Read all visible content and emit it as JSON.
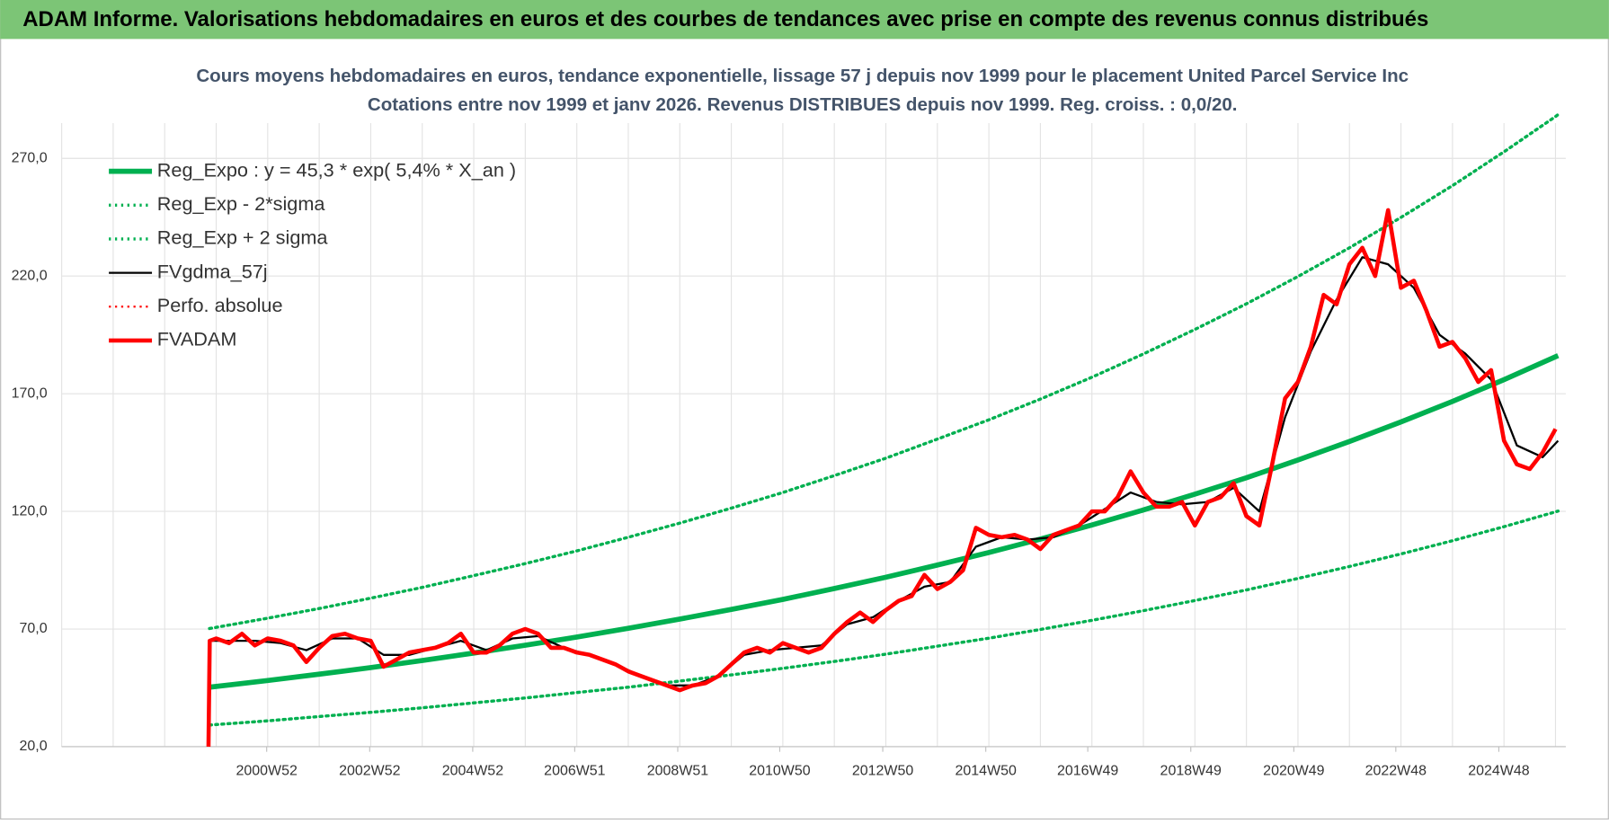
{
  "header": {
    "title": "ADAM Informe. Valorisations hebdomadaires en euros et des courbes de tendances avec prise en compte des revenus connus distribués"
  },
  "chart_data": {
    "type": "line",
    "title": "Cours moyens hebdomadaires en euros, tendance exponentielle, lissage 57 j depuis nov 1999  pour le placement United Parcel Service Inc",
    "subtitle": "Cotations entre nov 1999 et janv 2026. Revenus DISTRIBUES depuis nov 1999. Reg. croiss. : 0,0/20.",
    "xlim": [
      1997,
      2026.2
    ],
    "xticks": [
      {
        "value": 2000.98,
        "label": "2000W52"
      },
      {
        "value": 2002.98,
        "label": "2002W52"
      },
      {
        "value": 2004.98,
        "label": "2004W52"
      },
      {
        "value": 2006.96,
        "label": "2006W51"
      },
      {
        "value": 2008.96,
        "label": "2008W51"
      },
      {
        "value": 2010.94,
        "label": "2010W50"
      },
      {
        "value": 2012.94,
        "label": "2012W50"
      },
      {
        "value": 2014.94,
        "label": "2014W50"
      },
      {
        "value": 2016.92,
        "label": "2016W49"
      },
      {
        "value": 2018.92,
        "label": "2018W49"
      },
      {
        "value": 2020.92,
        "label": "2020W49"
      },
      {
        "value": 2022.9,
        "label": "2022W48"
      },
      {
        "value": 2024.9,
        "label": "2024W48"
      }
    ],
    "xgrid": [
      1997,
      1998,
      1999,
      2000,
      2001,
      2002,
      2003,
      2004,
      2005,
      2006,
      2007,
      2008,
      2009,
      2010,
      2011,
      2012,
      2013,
      2014,
      2015,
      2016,
      2017,
      2018,
      2019,
      2020,
      2021,
      2022,
      2023,
      2024,
      2025,
      2026
    ],
    "ylim": [
      20,
      285
    ],
    "yticks": [
      {
        "value": 20,
        "label": "20,0"
      },
      {
        "value": 70,
        "label": "70,0"
      },
      {
        "value": 120,
        "label": "120,0"
      },
      {
        "value": 170,
        "label": "170,0"
      },
      {
        "value": 220,
        "label": "220,0"
      },
      {
        "value": 270,
        "label": "270,0"
      }
    ],
    "grid": true,
    "legend": "upper-left",
    "series": [
      {
        "name": "Reg_Expo : y = 45,3 * exp( 5,4% *  X_an )",
        "color": "#00b050",
        "style": "solid",
        "width": 5,
        "x": [
          1999.87,
          2001,
          2002,
          2003,
          2004,
          2005,
          2006,
          2007,
          2008,
          2009,
          2010,
          2011,
          2012,
          2013,
          2014,
          2015,
          2016,
          2017,
          2018,
          2019,
          2020,
          2021,
          2022,
          2023,
          2024,
          2025,
          2026,
          2026.05
        ],
        "values": [
          45.3,
          48.1,
          50.8,
          53.6,
          56.6,
          59.8,
          63.1,
          66.6,
          70.3,
          74.2,
          78.3,
          82.6,
          87.2,
          92.0,
          97.2,
          102.5,
          108.2,
          114.2,
          120.6,
          127.3,
          134.3,
          141.8,
          149.7,
          158.0,
          166.7,
          176.0,
          185.7,
          186.2
        ]
      },
      {
        "name": "Reg_Exp - 2*sigma",
        "color": "#00b050",
        "style": "dotted",
        "width": 3,
        "x": [
          1999.87,
          2001,
          2002,
          2003,
          2004,
          2005,
          2006,
          2007,
          2008,
          2009,
          2010,
          2011,
          2012,
          2013,
          2014,
          2015,
          2016,
          2017,
          2018,
          2019,
          2020,
          2021,
          2022,
          2023,
          2024,
          2025,
          2026,
          2026.05
        ],
        "values": [
          29.2,
          31.0,
          32.8,
          34.6,
          36.5,
          38.6,
          40.7,
          43.0,
          45.3,
          47.9,
          50.5,
          53.3,
          56.2,
          59.3,
          62.7,
          66.1,
          69.8,
          73.7,
          77.8,
          82.1,
          86.6,
          91.5,
          96.6,
          101.9,
          107.5,
          113.5,
          119.8,
          120.1
        ]
      },
      {
        "name": "Reg_Exp + 2 sigma",
        "color": "#00b050",
        "style": "dotted",
        "width": 3,
        "x": [
          1999.87,
          2001,
          2002,
          2003,
          2004,
          2005,
          2006,
          2007,
          2008,
          2009,
          2010,
          2011,
          2012,
          2013,
          2014,
          2015,
          2016,
          2017,
          2018,
          2019,
          2020,
          2021,
          2022,
          2023,
          2024,
          2025,
          2026,
          2026.05
        ],
        "values": [
          70.2,
          74.6,
          78.7,
          83.1,
          87.7,
          92.7,
          97.8,
          103.2,
          109.0,
          115.0,
          121.4,
          128.0,
          135.2,
          142.6,
          150.7,
          158.9,
          167.7,
          177.0,
          186.9,
          197.3,
          208.2,
          219.8,
          232.0,
          244.9,
          258.4,
          272.8,
          287.8,
          288.6
        ]
      },
      {
        "name": "FVgdma_57j",
        "color": "#000000",
        "style": "solid",
        "width": 2,
        "x": [
          1999.875,
          2000.25,
          2000.75,
          2001.25,
          2001.75,
          2002.25,
          2002.75,
          2003.25,
          2003.75,
          2004.25,
          2004.75,
          2005.25,
          2005.75,
          2006.25,
          2006.75,
          2007.25,
          2007.75,
          2008.25,
          2008.75,
          2009.25,
          2009.75,
          2010.25,
          2010.75,
          2011.25,
          2011.75,
          2012.25,
          2012.75,
          2013.25,
          2013.75,
          2014.25,
          2014.75,
          2015.25,
          2015.75,
          2016.25,
          2016.75,
          2017.25,
          2017.75,
          2018.25,
          2018.75,
          2019.25,
          2019.75,
          2020.25,
          2020.75,
          2021.25,
          2021.75,
          2022.25,
          2022.75,
          2023.25,
          2023.75,
          2024.25,
          2024.75,
          2025.25,
          2025.75,
          2026.05
        ],
        "values": [
          65,
          65,
          65,
          64,
          61,
          66,
          66,
          59,
          59,
          62,
          65,
          61,
          66,
          67,
          62,
          59,
          55,
          50,
          46,
          46,
          50,
          59,
          61,
          62,
          63,
          72,
          75,
          82,
          88,
          90,
          105,
          109,
          108,
          109,
          114,
          121,
          128,
          124,
          123,
          124,
          130,
          120,
          160,
          188,
          210,
          228,
          225,
          215,
          195,
          187,
          176,
          148,
          143,
          150
        ]
      },
      {
        "name": "Perfo. absolue",
        "color": "#ff0000",
        "style": "dotted",
        "width": 2,
        "x": [],
        "values": []
      },
      {
        "name": "FVADAM",
        "color": "#ff0000",
        "style": "solid",
        "width": 4,
        "x": [
          1999.85,
          1999.875,
          2000.0,
          2000.25,
          2000.5,
          2000.75,
          2001.0,
          2001.25,
          2001.5,
          2001.75,
          2002.0,
          2002.25,
          2002.5,
          2002.75,
          2003.0,
          2003.25,
          2003.5,
          2003.75,
          2004.0,
          2004.25,
          2004.5,
          2004.75,
          2005.0,
          2005.25,
          2005.5,
          2005.75,
          2006.0,
          2006.25,
          2006.5,
          2006.75,
          2007.0,
          2007.25,
          2007.5,
          2007.75,
          2008.0,
          2008.25,
          2008.5,
          2008.75,
          2009.0,
          2009.25,
          2009.5,
          2009.75,
          2010.0,
          2010.25,
          2010.5,
          2010.75,
          2011.0,
          2011.25,
          2011.5,
          2011.75,
          2012.0,
          2012.25,
          2012.5,
          2012.75,
          2013.0,
          2013.25,
          2013.5,
          2013.75,
          2014.0,
          2014.25,
          2014.5,
          2014.75,
          2015.0,
          2015.25,
          2015.5,
          2015.75,
          2016.0,
          2016.25,
          2016.5,
          2016.75,
          2017.0,
          2017.25,
          2017.5,
          2017.75,
          2018.0,
          2018.25,
          2018.5,
          2018.75,
          2019.0,
          2019.25,
          2019.5,
          2019.75,
          2020.0,
          2020.25,
          2020.5,
          2020.75,
          2021.0,
          2021.25,
          2021.5,
          2021.75,
          2022.0,
          2022.25,
          2022.5,
          2022.75,
          2023.0,
          2023.25,
          2023.5,
          2023.75,
          2024.0,
          2024.25,
          2024.5,
          2024.75,
          2025.0,
          2025.25,
          2025.5,
          2025.75,
          2026.0
        ],
        "values": [
          20,
          65,
          66,
          64,
          68,
          63,
          66,
          65,
          63,
          56,
          62,
          67,
          68,
          66,
          65,
          54,
          57,
          60,
          61,
          62,
          64,
          68,
          60,
          60,
          63,
          68,
          70,
          68,
          62,
          62,
          60,
          59,
          57,
          55,
          52,
          50,
          48,
          46,
          44,
          46,
          47,
          50,
          55,
          60,
          62,
          60,
          64,
          62,
          60,
          62,
          68,
          73,
          77,
          73,
          78,
          82,
          84,
          93,
          87,
          90,
          95,
          113,
          110,
          109,
          110,
          108,
          104,
          110,
          112,
          114,
          120,
          120,
          126,
          137,
          128,
          122,
          122,
          124,
          114,
          124,
          126,
          132,
          118,
          114,
          140,
          168,
          175,
          190,
          212,
          208,
          225,
          232,
          220,
          248,
          215,
          218,
          205,
          190,
          192,
          185,
          175,
          180,
          150,
          140,
          138,
          145,
          155
        ]
      }
    ]
  }
}
